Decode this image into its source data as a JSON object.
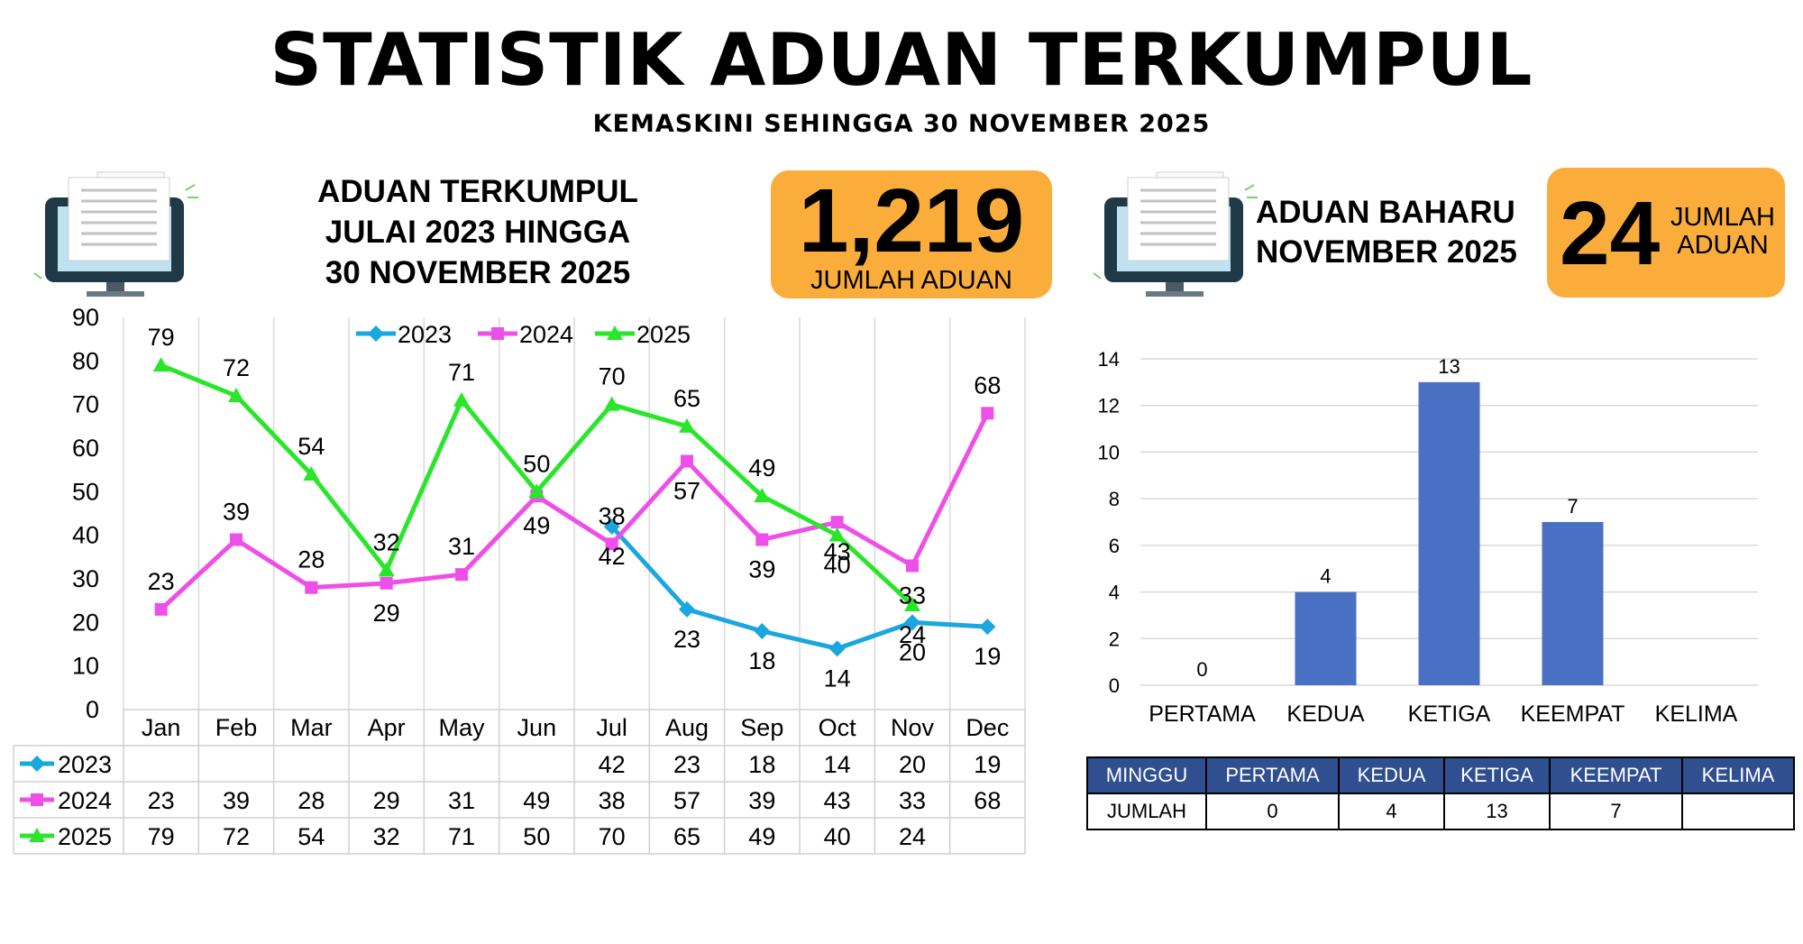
{
  "header": {
    "title": "STATISTIK ADUAN TERKUMPUL",
    "subtitle": "KEMASKINI SEHINGGA 30 NOVEMBER 2025"
  },
  "left_panel": {
    "heading_lines": [
      "ADUAN TERKUMPUL",
      "JULAI 2023 HINGGA",
      "30 NOVEMBER 2025"
    ],
    "total_value": "1,219",
    "total_label": "JUMLAH ADUAN",
    "icon": "monitor-document-icon"
  },
  "right_panel": {
    "heading_lines": [
      "ADUAN BAHARU",
      "NOVEMBER 2025"
    ],
    "total_value": "24",
    "total_label_lines": [
      "JUMLAH",
      "ADUAN"
    ],
    "icon": "monitor-document-icon"
  },
  "colors": {
    "accent_orange": "#fbad3b",
    "series_2023": "#1aa7e0",
    "series_2024": "#ee4fe8",
    "series_2025": "#29e62b",
    "bar": "#4a70c4",
    "table_header": "#2f4f91"
  },
  "chart_data": [
    {
      "type": "line",
      "categories": [
        "Jan",
        "Feb",
        "Mar",
        "Apr",
        "May",
        "Jun",
        "Jul",
        "Aug",
        "Sep",
        "Oct",
        "Nov",
        "Dec"
      ],
      "ylim": [
        0,
        90
      ],
      "yticks": [
        0,
        10,
        20,
        30,
        40,
        50,
        60,
        70,
        80,
        90
      ],
      "grid": "vertical",
      "legend_position": "top",
      "data_table": true,
      "series": [
        {
          "name": "2023",
          "values": [
            null,
            null,
            null,
            null,
            null,
            null,
            42,
            23,
            18,
            14,
            20,
            19
          ],
          "marker": "diamond"
        },
        {
          "name": "2024",
          "values": [
            23,
            39,
            28,
            29,
            31,
            49,
            38,
            57,
            39,
            43,
            33,
            68
          ],
          "marker": "square"
        },
        {
          "name": "2025",
          "values": [
            79,
            72,
            54,
            32,
            71,
            50,
            70,
            65,
            49,
            40,
            24,
            null
          ],
          "marker": "triangle"
        }
      ]
    },
    {
      "type": "bar",
      "categories": [
        "PERTAMA",
        "KEDUA",
        "KETIGA",
        "KEEMPAT",
        "KELIMA"
      ],
      "values": [
        0,
        4,
        13,
        7,
        null
      ],
      "ylim": [
        0,
        14
      ],
      "yticks": [
        0,
        2,
        4,
        6,
        8,
        10,
        12,
        14
      ],
      "grid": "horizontal"
    }
  ],
  "week_table": {
    "header": [
      "MINGGU",
      "PERTAMA",
      "KEDUA",
      "KETIGA",
      "KEEMPAT",
      "KELIMA"
    ],
    "row": [
      "JUMLAH",
      "0",
      "4",
      "13",
      "7",
      ""
    ]
  }
}
